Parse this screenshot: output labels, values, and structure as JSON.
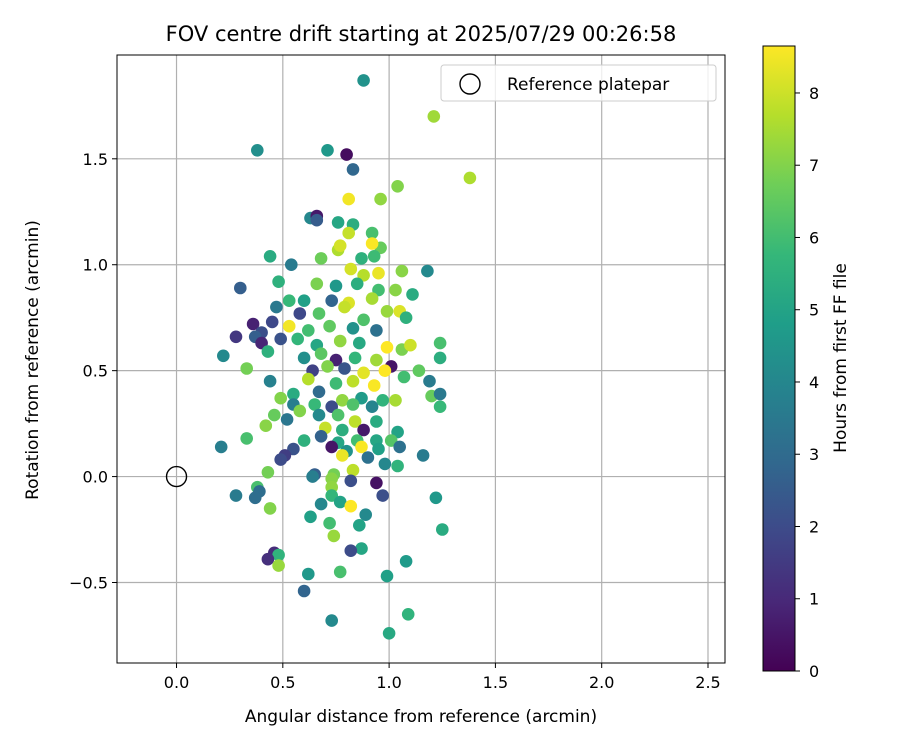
{
  "chart_data": {
    "type": "scatter",
    "title": "FOV centre drift starting at 2025/07/29 00:26:58",
    "xlabel": "Angular distance from reference (arcmin)",
    "ylabel": "Rotation from reference (arcmin)",
    "xlim": [
      -0.28,
      2.58
    ],
    "ylim": [
      -0.88,
      1.99
    ],
    "xticks": [
      0.0,
      0.5,
      1.0,
      1.5,
      2.0,
      2.5
    ],
    "xtick_labels": [
      "0.0",
      "0.5",
      "1.0",
      "1.5",
      "2.0",
      "2.5"
    ],
    "yticks": [
      -0.5,
      0.0,
      0.5,
      1.0,
      1.5
    ],
    "ytick_labels": [
      "−0.5",
      "0.0",
      "0.5",
      "1.0",
      "1.5"
    ],
    "grid": true,
    "legend": {
      "placement": "top-right",
      "entries": [
        "Reference platepar"
      ]
    },
    "reference_point": {
      "name": "Reference platepar",
      "x": 0.0,
      "y": 0.0
    },
    "colorbar": {
      "label": "Hours from first FF file",
      "colormap": "viridis",
      "min": 0,
      "max": 8.65,
      "ticks": [
        0,
        1,
        2,
        3,
        4,
        5,
        6,
        7,
        8
      ],
      "tick_labels": [
        "0",
        "1",
        "2",
        "3",
        "4",
        "5",
        "6",
        "7",
        "8"
      ]
    },
    "colors": {
      "viridis": [
        "#440154",
        "#482878",
        "#3e4989",
        "#31688e",
        "#26828e",
        "#1f9e89",
        "#35b779",
        "#6ece58",
        "#b5de2b",
        "#fde725"
      ]
    },
    "points": [
      [
        0.88,
        1.87,
        4.4
      ],
      [
        1.21,
        1.7,
        7.4
      ],
      [
        0.38,
        1.54,
        4.3
      ],
      [
        0.71,
        1.54,
        4.6
      ],
      [
        0.8,
        1.52,
        0.3
      ],
      [
        0.83,
        1.45,
        2.9
      ],
      [
        1.38,
        1.41,
        7.6
      ],
      [
        1.04,
        1.37,
        7.0
      ],
      [
        0.81,
        1.31,
        8.5
      ],
      [
        0.96,
        1.31,
        7.2
      ],
      [
        0.63,
        1.22,
        4.0
      ],
      [
        0.66,
        1.23,
        0.6
      ],
      [
        0.66,
        1.21,
        2.5
      ],
      [
        0.76,
        1.2,
        5.1
      ],
      [
        0.83,
        1.19,
        5.4
      ],
      [
        0.81,
        1.15,
        7.9
      ],
      [
        0.92,
        1.15,
        6.1
      ],
      [
        0.96,
        1.08,
        6.6
      ],
      [
        0.92,
        1.1,
        8.6
      ],
      [
        0.76,
        1.07,
        7.6
      ],
      [
        0.77,
        1.09,
        8.1
      ],
      [
        0.68,
        1.03,
        6.7
      ],
      [
        0.87,
        1.03,
        5.5
      ],
      [
        0.93,
        1.04,
        5.9
      ],
      [
        0.44,
        1.04,
        5.3
      ],
      [
        0.54,
        1.0,
        3.6
      ],
      [
        0.82,
        0.98,
        8.1
      ],
      [
        0.88,
        0.95,
        7.7
      ],
      [
        0.95,
        0.96,
        8.4
      ],
      [
        1.06,
        0.97,
        7.1
      ],
      [
        1.18,
        0.97,
        4.1
      ],
      [
        0.3,
        0.89,
        2.6
      ],
      [
        0.48,
        0.92,
        5.5
      ],
      [
        0.66,
        0.91,
        6.9
      ],
      [
        0.75,
        0.9,
        4.6
      ],
      [
        0.85,
        0.91,
        5.4
      ],
      [
        0.95,
        0.88,
        6.0
      ],
      [
        1.03,
        0.88,
        7.1
      ],
      [
        1.11,
        0.86,
        5.3
      ],
      [
        0.53,
        0.83,
        5.8
      ],
      [
        0.6,
        0.83,
        4.9
      ],
      [
        0.73,
        0.83,
        2.8
      ],
      [
        0.81,
        0.82,
        8.2
      ],
      [
        0.92,
        0.84,
        7.5
      ],
      [
        0.47,
        0.8,
        3.5
      ],
      [
        0.58,
        0.77,
        1.9
      ],
      [
        0.67,
        0.77,
        6.3
      ],
      [
        0.79,
        0.8,
        7.9
      ],
      [
        0.88,
        0.74,
        6.2
      ],
      [
        0.99,
        0.78,
        7.3
      ],
      [
        1.05,
        0.78,
        8.2
      ],
      [
        1.08,
        0.75,
        5.5
      ],
      [
        0.45,
        0.73,
        1.9
      ],
      [
        0.36,
        0.72,
        0.8
      ],
      [
        0.53,
        0.71,
        8.5
      ],
      [
        0.62,
        0.69,
        6.0
      ],
      [
        0.72,
        0.71,
        6.5
      ],
      [
        0.83,
        0.7,
        4.4
      ],
      [
        0.94,
        0.69,
        3.2
      ],
      [
        0.4,
        0.68,
        2.1
      ],
      [
        0.37,
        0.66,
        2.6
      ],
      [
        0.28,
        0.66,
        1.4
      ],
      [
        0.49,
        0.65,
        2.2
      ],
      [
        0.57,
        0.65,
        5.7
      ],
      [
        0.66,
        0.62,
        5.1
      ],
      [
        0.77,
        0.64,
        7.2
      ],
      [
        0.86,
        0.63,
        5.2
      ],
      [
        0.99,
        0.61,
        8.8
      ],
      [
        1.06,
        0.6,
        6.9
      ],
      [
        1.1,
        0.62,
        8.0
      ],
      [
        1.24,
        0.63,
        6.1
      ],
      [
        0.4,
        0.63,
        0.9
      ],
      [
        0.43,
        0.59,
        5.5
      ],
      [
        0.22,
        0.57,
        4.1
      ],
      [
        0.6,
        0.56,
        4.3
      ],
      [
        0.68,
        0.58,
        6.4
      ],
      [
        0.75,
        0.55,
        0.8
      ],
      [
        0.84,
        0.56,
        5.7
      ],
      [
        0.94,
        0.55,
        7.4
      ],
      [
        1.01,
        0.52,
        0.5
      ],
      [
        1.24,
        0.56,
        5.4
      ],
      [
        0.33,
        0.51,
        6.8
      ],
      [
        0.64,
        0.5,
        1.7
      ],
      [
        0.71,
        0.52,
        7.0
      ],
      [
        0.79,
        0.51,
        2.3
      ],
      [
        0.88,
        0.49,
        8.3
      ],
      [
        0.98,
        0.5,
        8.9
      ],
      [
        1.07,
        0.47,
        6.0
      ],
      [
        1.14,
        0.5,
        6.5
      ],
      [
        0.44,
        0.45,
        3.8
      ],
      [
        0.62,
        0.46,
        7.7
      ],
      [
        0.75,
        0.44,
        5.9
      ],
      [
        0.83,
        0.45,
        7.8
      ],
      [
        0.93,
        0.43,
        8.6
      ],
      [
        1.19,
        0.45,
        3.6
      ],
      [
        0.55,
        0.39,
        5.3
      ],
      [
        0.49,
        0.37,
        7.0
      ],
      [
        0.67,
        0.4,
        3.0
      ],
      [
        0.78,
        0.36,
        7.2
      ],
      [
        0.87,
        0.37,
        4.7
      ],
      [
        0.97,
        0.36,
        5.6
      ],
      [
        1.03,
        0.36,
        7.5
      ],
      [
        1.2,
        0.38,
        6.6
      ],
      [
        1.24,
        0.39,
        3.5
      ],
      [
        0.55,
        0.34,
        3.7
      ],
      [
        0.65,
        0.34,
        5.8
      ],
      [
        0.73,
        0.33,
        2.0
      ],
      [
        0.83,
        0.34,
        6.2
      ],
      [
        0.92,
        0.33,
        3.9
      ],
      [
        1.24,
        0.33,
        5.8
      ],
      [
        0.46,
        0.29,
        6.6
      ],
      [
        0.58,
        0.31,
        7.0
      ],
      [
        0.67,
        0.29,
        4.1
      ],
      [
        0.76,
        0.29,
        6.2
      ],
      [
        0.84,
        0.26,
        7.8
      ],
      [
        0.94,
        0.26,
        5.3
      ],
      [
        0.52,
        0.27,
        3.4
      ],
      [
        0.42,
        0.24,
        7.1
      ],
      [
        0.7,
        0.23,
        7.9
      ],
      [
        0.78,
        0.22,
        5.4
      ],
      [
        0.88,
        0.22,
        0.6
      ],
      [
        1.04,
        0.21,
        5.0
      ],
      [
        0.6,
        0.17,
        5.5
      ],
      [
        0.68,
        0.19,
        2.7
      ],
      [
        0.76,
        0.16,
        5.1
      ],
      [
        0.85,
        0.17,
        6.0
      ],
      [
        0.94,
        0.17,
        5.1
      ],
      [
        1.01,
        0.17,
        6.3
      ],
      [
        0.33,
        0.18,
        6.1
      ],
      [
        0.21,
        0.14,
        3.7
      ],
      [
        0.55,
        0.13,
        2.2
      ],
      [
        0.73,
        0.14,
        0.5
      ],
      [
        0.8,
        0.12,
        4.4
      ],
      [
        0.87,
        0.14,
        8.6
      ],
      [
        0.95,
        0.13,
        4.9
      ],
      [
        1.05,
        0.14,
        3.2
      ],
      [
        0.51,
        0.1,
        1.6
      ],
      [
        0.49,
        0.08,
        2.0
      ],
      [
        0.78,
        0.1,
        8.4
      ],
      [
        0.9,
        0.09,
        3.2
      ],
      [
        1.16,
        0.1,
        3.6
      ],
      [
        0.65,
        0.01,
        2.6
      ],
      [
        0.83,
        0.03,
        7.8
      ],
      [
        0.74,
        0.01,
        6.8
      ],
      [
        0.98,
        0.06,
        4.0
      ],
      [
        1.04,
        0.05,
        5.6
      ],
      [
        0.64,
        0.0,
        3.7
      ],
      [
        0.43,
        0.02,
        6.8
      ],
      [
        0.73,
        -0.01,
        7.1
      ],
      [
        0.82,
        -0.02,
        2.1
      ],
      [
        0.73,
        -0.05,
        7.2
      ],
      [
        0.38,
        -0.05,
        6.1
      ],
      [
        0.39,
        -0.07,
        3.1
      ],
      [
        0.73,
        -0.09,
        5.7
      ],
      [
        0.94,
        -0.03,
        0.4
      ],
      [
        0.97,
        -0.09,
        2.1
      ],
      [
        0.28,
        -0.09,
        3.6
      ],
      [
        0.37,
        -0.1,
        3.1
      ],
      [
        1.22,
        -0.1,
        4.6
      ],
      [
        0.68,
        -0.13,
        4.0
      ],
      [
        0.77,
        -0.12,
        5.0
      ],
      [
        0.82,
        -0.14,
        8.7
      ],
      [
        0.44,
        -0.15,
        7.0
      ],
      [
        0.63,
        -0.19,
        4.9
      ],
      [
        0.89,
        -0.18,
        4.1
      ],
      [
        0.72,
        -0.22,
        6.0
      ],
      [
        0.86,
        -0.23,
        5.0
      ],
      [
        1.25,
        -0.25,
        5.3
      ],
      [
        0.74,
        -0.28,
        7.3
      ],
      [
        0.87,
        -0.34,
        5.1
      ],
      [
        0.82,
        -0.35,
        2.0
      ],
      [
        0.46,
        -0.36,
        1.1
      ],
      [
        0.48,
        -0.37,
        5.6
      ],
      [
        0.43,
        -0.39,
        1.2
      ],
      [
        0.48,
        -0.42,
        7.3
      ],
      [
        1.08,
        -0.4,
        4.7
      ],
      [
        0.62,
        -0.46,
        4.6
      ],
      [
        0.77,
        -0.45,
        6.1
      ],
      [
        0.99,
        -0.47,
        4.9
      ],
      [
        0.6,
        -0.54,
        2.8
      ],
      [
        1.09,
        -0.65,
        5.6
      ],
      [
        0.73,
        -0.68,
        4.1
      ],
      [
        1.0,
        -0.74,
        5.2
      ]
    ]
  }
}
